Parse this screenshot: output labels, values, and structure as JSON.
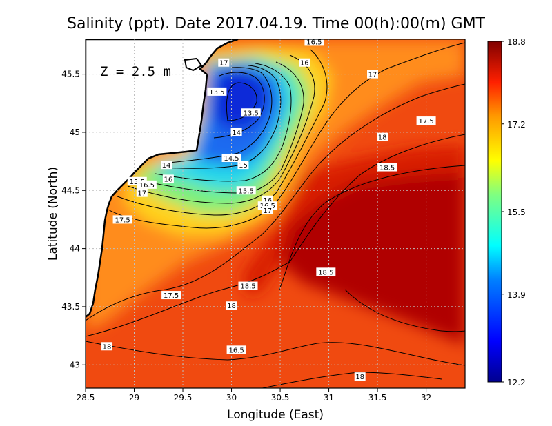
{
  "chart_data": {
    "type": "heatmap",
    "title": "Salinity (ppt). Date 2017.04.19. Time 00(h):00(m) GMT",
    "xlabel": "Longitude (East)",
    "ylabel": "Latitude (North)",
    "depth_label": "Z = 2.5 m",
    "xlim": [
      28.5,
      32.4
    ],
    "ylim": [
      42.8,
      45.8
    ],
    "x_ticks": [
      28.5,
      29,
      29.5,
      30,
      30.5,
      31,
      31.5,
      32
    ],
    "x_tick_labels": [
      "28.5",
      "29",
      "29.5",
      "30",
      "30.5",
      "31",
      "31.5",
      "32"
    ],
    "y_ticks": [
      43,
      43.5,
      44,
      44.5,
      45,
      45.5
    ],
    "y_tick_labels": [
      "43",
      "43.5",
      "44",
      "44.5",
      "45",
      "45.5"
    ],
    "grid": true,
    "colorbar": {
      "min": 12.2,
      "max": 18.8,
      "ticks": [
        18.8,
        17.2,
        15.5,
        13.9,
        12.2
      ],
      "tick_labels": [
        "18.8",
        "17.2",
        "15.5",
        "13.9",
        "12.2"
      ],
      "colormap": "jet"
    },
    "contour_labels": [
      {
        "label": "16.5",
        "lon": 30.85,
        "lat": 45.78
      },
      {
        "label": "16",
        "lon": 30.75,
        "lat": 45.6
      },
      {
        "label": "17",
        "lon": 31.45,
        "lat": 45.5
      },
      {
        "label": "17",
        "lon": 29.92,
        "lat": 45.6
      },
      {
        "label": "13.5",
        "lon": 29.85,
        "lat": 45.35
      },
      {
        "label": "13.5",
        "lon": 30.2,
        "lat": 45.17
      },
      {
        "label": "14",
        "lon": 30.05,
        "lat": 45.0
      },
      {
        "label": "17.5",
        "lon": 32.0,
        "lat": 45.1
      },
      {
        "label": "18",
        "lon": 31.55,
        "lat": 44.96
      },
      {
        "label": "14.5",
        "lon": 30.0,
        "lat": 44.78
      },
      {
        "label": "14",
        "lon": 29.33,
        "lat": 44.72
      },
      {
        "label": "15",
        "lon": 30.12,
        "lat": 44.72
      },
      {
        "label": "18.5",
        "lon": 31.6,
        "lat": 44.7
      },
      {
        "label": "16",
        "lon": 29.35,
        "lat": 44.6
      },
      {
        "label": "15.5",
        "lon": 29.03,
        "lat": 44.58
      },
      {
        "label": "16.5",
        "lon": 29.13,
        "lat": 44.55
      },
      {
        "label": "15.5",
        "lon": 30.15,
        "lat": 44.5
      },
      {
        "label": "17",
        "lon": 29.08,
        "lat": 44.48
      },
      {
        "label": "16",
        "lon": 30.37,
        "lat": 44.42
      },
      {
        "label": "16.5",
        "lon": 30.37,
        "lat": 44.37
      },
      {
        "label": "17",
        "lon": 30.37,
        "lat": 44.33
      },
      {
        "label": "17.5",
        "lon": 28.88,
        "lat": 44.25
      },
      {
        "label": "18.5",
        "lon": 30.97,
        "lat": 43.8
      },
      {
        "label": "18.5",
        "lon": 30.17,
        "lat": 43.68
      },
      {
        "label": "17.5",
        "lon": 29.38,
        "lat": 43.6
      },
      {
        "label": "18",
        "lon": 30.0,
        "lat": 43.51
      },
      {
        "label": "18",
        "lon": 28.72,
        "lat": 43.16
      },
      {
        "label": "16.5",
        "lon": 30.05,
        "lat": 43.13
      },
      {
        "label": "18",
        "lon": 31.32,
        "lat": 42.9
      }
    ],
    "colors": {
      "land": "#ffffff",
      "coastline": "#000000",
      "contour": "#000000"
    }
  }
}
